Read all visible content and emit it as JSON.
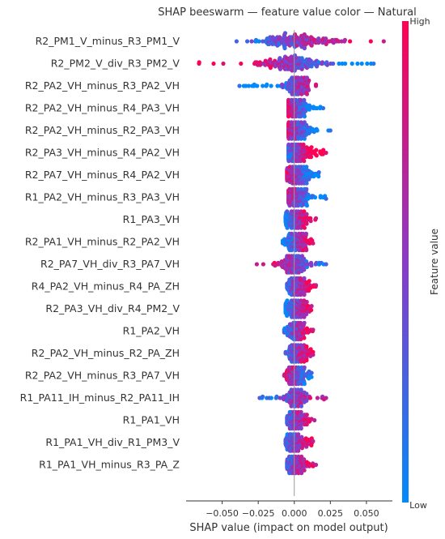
{
  "chart_data": {
    "type": "scatter",
    "subtype": "shap-beeswarm",
    "title": "SHAP beeswarm — feature value color — Natural",
    "xlabel": "SHAP value (impact on model output)",
    "ylabel": "",
    "xlim": [
      -0.075,
      0.068
    ],
    "xticks": [
      -0.05,
      -0.025,
      0.0,
      0.025,
      0.05
    ],
    "xtick_labels": [
      "−0.050",
      "−0.025",
      "0.000",
      "0.025",
      "0.050"
    ],
    "zero_line": true,
    "grid": false,
    "colorbar": {
      "label": "Feature value",
      "high_label": "High",
      "low_label": "Low",
      "low_color": "#008afb",
      "high_color": "#ff0052"
    },
    "features": [
      {
        "name": "R2_PM1_V_minus_R3_PM1_V",
        "min": -0.04,
        "max": 0.062,
        "spread": 0.02,
        "center": 0.0,
        "corr": 0.5
      },
      {
        "name": "R2_PM2_V_div_R3_PM2_V",
        "min": -0.066,
        "max": 0.055,
        "spread": 0.018,
        "center": 0.0,
        "corr": -0.75
      },
      {
        "name": "R2_PA2_VH_minus_R3_PA2_VH",
        "min": -0.038,
        "max": 0.015,
        "spread": 0.006,
        "center": 0.002,
        "corr": 0.7
      },
      {
        "name": "R2_PA2_VH_minus_R4_PA3_VH",
        "min": -0.004,
        "max": 0.02,
        "spread": 0.006,
        "center": 0.002,
        "corr": -0.7
      },
      {
        "name": "R2_PA2_VH_minus_R2_PA3_VH",
        "min": -0.004,
        "max": 0.025,
        "spread": 0.006,
        "center": 0.002,
        "corr": -0.7
      },
      {
        "name": "R2_PA3_VH_minus_R4_PA2_VH",
        "min": -0.004,
        "max": 0.022,
        "spread": 0.006,
        "center": 0.002,
        "corr": 0.7
      },
      {
        "name": "R2_PA7_VH_minus_R4_PA2_VH",
        "min": -0.005,
        "max": 0.017,
        "spread": 0.006,
        "center": 0.002,
        "corr": -0.6
      },
      {
        "name": "R1_PA2_VH_minus_R3_PA3_VH",
        "min": -0.004,
        "max": 0.022,
        "spread": 0.006,
        "center": 0.002,
        "corr": -0.6
      },
      {
        "name": "R1_PA3_VH",
        "min": -0.006,
        "max": 0.015,
        "spread": 0.005,
        "center": 0.002,
        "corr": 0.6
      },
      {
        "name": "R2_PA1_VH_minus_R2_PA2_VH",
        "min": -0.008,
        "max": 0.013,
        "spread": 0.006,
        "center": 0.002,
        "corr": 0.6
      },
      {
        "name": "R2_PA7_VH_div_R3_PA7_VH",
        "min": -0.026,
        "max": 0.022,
        "spread": 0.007,
        "center": 0.0,
        "corr": -0.5
      },
      {
        "name": "R4_PA2_VH_minus_R4_PA_ZH",
        "min": -0.005,
        "max": 0.015,
        "spread": 0.005,
        "center": 0.002,
        "corr": 0.5
      },
      {
        "name": "R2_PA3_VH_div_R4_PM2_V",
        "min": -0.006,
        "max": 0.012,
        "spread": 0.005,
        "center": 0.002,
        "corr": 0.5
      },
      {
        "name": "R1_PA2_VH",
        "min": -0.007,
        "max": 0.013,
        "spread": 0.005,
        "center": 0.002,
        "corr": 0.5
      },
      {
        "name": "R2_PA2_VH_minus_R2_PA_ZH",
        "min": -0.006,
        "max": 0.013,
        "spread": 0.005,
        "center": 0.002,
        "corr": 0.5
      },
      {
        "name": "R2_PA2_VH_minus_R3_PA7_VH",
        "min": -0.007,
        "max": 0.012,
        "spread": 0.005,
        "center": 0.001,
        "corr": -0.5
      },
      {
        "name": "R1_PA11_IH_minus_R2_PA11_IH",
        "min": -0.024,
        "max": 0.022,
        "spread": 0.005,
        "center": 0.001,
        "corr": 0.4
      },
      {
        "name": "R1_PA1_VH",
        "min": -0.005,
        "max": 0.014,
        "spread": 0.005,
        "center": 0.001,
        "corr": 0.4
      },
      {
        "name": "R1_PA1_VH_div_R1_PM3_V",
        "min": -0.006,
        "max": 0.013,
        "spread": 0.005,
        "center": 0.001,
        "corr": 0.4
      },
      {
        "name": "R1_PA1_VH_minus_R3_PA_Z",
        "min": -0.005,
        "max": 0.015,
        "spread": 0.005,
        "center": 0.001,
        "corr": 0.4
      }
    ]
  }
}
